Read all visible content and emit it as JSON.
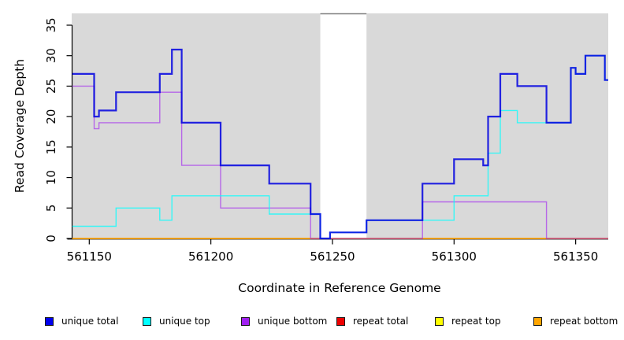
{
  "chart_data": {
    "type": "line",
    "subtype": "step-after-coverage",
    "title": "",
    "xlabel": "Coordinate in Reference Genome",
    "ylabel": "Read Coverage Depth",
    "xlim": [
      561143,
      561363
    ],
    "ylim": [
      0,
      35
    ],
    "xticks": [
      "561150",
      "561200",
      "561250",
      "561300",
      "561350"
    ],
    "xtick_values": [
      561150,
      561200,
      561250,
      561300,
      561350
    ],
    "yticks": [
      "0",
      "5",
      "10",
      "15",
      "20",
      "25",
      "30",
      "35"
    ],
    "ytick_values": [
      0,
      5,
      10,
      15,
      20,
      25,
      30,
      35
    ],
    "grid": "off",
    "plot_background": "#d9d9d9",
    "masked_band": {
      "x0": 561245,
      "x1": 561264,
      "color": "#ffffff"
    },
    "legend_position": "bottom",
    "series": [
      {
        "name": "unique total",
        "color": "#0000e0",
        "legend_color": "#0000ee",
        "opacity": 0.85,
        "width": 2.2,
        "points": [
          [
            561143,
            27
          ],
          [
            561152,
            20
          ],
          [
            561154,
            21
          ],
          [
            561161,
            24
          ],
          [
            561179,
            27
          ],
          [
            561184,
            31
          ],
          [
            561188,
            19
          ],
          [
            561204,
            12
          ],
          [
            561224,
            9
          ],
          [
            561241,
            4
          ],
          [
            561245,
            0
          ],
          [
            561249,
            1
          ],
          [
            561264,
            3
          ],
          [
            561287,
            9
          ],
          [
            561300,
            13
          ],
          [
            561312,
            12
          ],
          [
            561314,
            20
          ],
          [
            561319,
            27
          ],
          [
            561326,
            25
          ],
          [
            561338,
            19
          ],
          [
            561348,
            28
          ],
          [
            561350,
            27
          ],
          [
            561354,
            30
          ],
          [
            561362,
            26
          ]
        ]
      },
      {
        "name": "unique top",
        "color": "#00ffff",
        "legend_color": "#00ffff",
        "opacity": 0.75,
        "width": 1.4,
        "points": [
          [
            561143,
            2
          ],
          [
            561161,
            5
          ],
          [
            561179,
            3
          ],
          [
            561184,
            7
          ],
          [
            561224,
            4
          ],
          [
            561245,
            0
          ],
          [
            561249,
            1
          ],
          [
            561264,
            3
          ],
          [
            561300,
            7
          ],
          [
            561314,
            14
          ],
          [
            561319,
            21
          ],
          [
            561326,
            19
          ],
          [
            561348,
            28
          ],
          [
            561350,
            27
          ],
          [
            561354,
            30
          ],
          [
            561362,
            26
          ]
        ]
      },
      {
        "name": "unique bottom",
        "color": "#a020f0",
        "legend_color": "#a020f0",
        "opacity": 0.62,
        "width": 1.4,
        "points": [
          [
            561143,
            25
          ],
          [
            561152,
            18
          ],
          [
            561154,
            19
          ],
          [
            561179,
            24
          ],
          [
            561188,
            12
          ],
          [
            561204,
            5
          ],
          [
            561241,
            0
          ],
          [
            561287,
            6
          ],
          [
            561338,
            0
          ]
        ]
      },
      {
        "name": "repeat total",
        "color": "#ee0000",
        "legend_color": "#ee0000",
        "opacity": 1,
        "width": 1.2,
        "points": [
          [
            561143,
            0
          ]
        ]
      },
      {
        "name": "repeat top",
        "color": "#ffff00",
        "legend_color": "#ffff00",
        "opacity": 1,
        "width": 1.2,
        "points": [
          [
            561143,
            0
          ]
        ]
      },
      {
        "name": "repeat bottom",
        "color": "#ffa500",
        "legend_color": "#ffa500",
        "opacity": 1,
        "width": 1.6,
        "points": [
          [
            561143,
            0
          ]
        ]
      }
    ]
  }
}
